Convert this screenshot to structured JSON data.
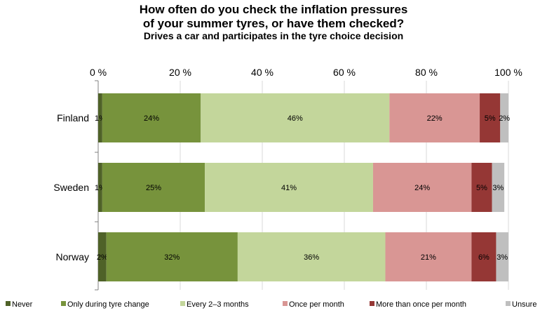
{
  "chart_data": {
    "type": "bar",
    "orientation": "horizontal",
    "stacked": true,
    "title_line1": "How often do you check the inflation pressures",
    "title_line2": "of your summer tyres, or have them checked?",
    "subtitle": "Drives a car and participates in the tyre choice decision",
    "xlim": [
      0,
      100
    ],
    "x_ticks": [
      "0 %",
      "20 %",
      "40 %",
      "60 %",
      "80 %",
      "100 %"
    ],
    "x_tick_values": [
      0,
      20,
      40,
      60,
      80,
      100
    ],
    "grid": true,
    "legend_position": "bottom",
    "categories": [
      "Finland",
      "Sweden",
      "Norway"
    ],
    "series": [
      {
        "name": "Never",
        "color": "#4f6228",
        "values": [
          1,
          1,
          2
        ],
        "labels": [
          "1%",
          "1%",
          "2%"
        ]
      },
      {
        "name": "Only during tyre change",
        "color": "#77933c",
        "values": [
          24,
          25,
          32
        ],
        "labels": [
          "24%",
          "25%",
          "32%"
        ]
      },
      {
        "name": "Every 2–3 months",
        "color": "#c3d69b",
        "values": [
          46,
          41,
          36
        ],
        "labels": [
          "46%",
          "41%",
          "36%"
        ]
      },
      {
        "name": "Once per month",
        "color": "#d99694",
        "values": [
          22,
          24,
          21
        ],
        "labels": [
          "22%",
          "24%",
          "21%"
        ]
      },
      {
        "name": "More than once per month",
        "color": "#953735",
        "values": [
          5,
          5,
          6
        ],
        "labels": [
          "5%",
          "5%",
          "6%"
        ]
      },
      {
        "name": "Unsure",
        "color": "#bfbfbf",
        "values": [
          2,
          3,
          3
        ],
        "labels": [
          "2%",
          "3%",
          "3%"
        ]
      }
    ]
  }
}
